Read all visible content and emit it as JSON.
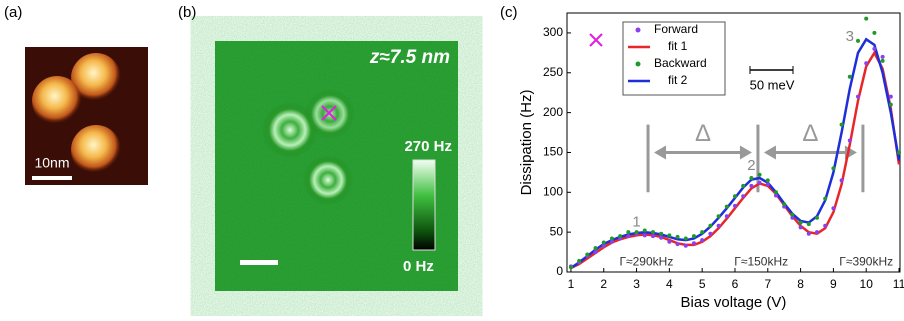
{
  "panels": {
    "a": {
      "label": "(a)",
      "scale_bar": "10nm"
    },
    "b": {
      "label": "(b)",
      "height": "z≈7.5 nm",
      "colorbar_max": "270 Hz",
      "colorbar_min": "0 Hz"
    },
    "c": {
      "label": "(c)"
    }
  },
  "chart_data": {
    "type": "line",
    "xlabel": "Bias voltage (V)",
    "ylabel": "Dissipation (Hz)",
    "xlim": [
      0.88,
      11.03
    ],
    "ylim": [
      0,
      325
    ],
    "xticks": [
      1,
      2,
      3,
      4,
      5,
      6,
      7,
      8,
      9,
      10,
      11
    ],
    "yticks": [
      0,
      50,
      100,
      150,
      200,
      250,
      300
    ],
    "x": [
      1,
      1.25,
      1.5,
      1.75,
      2,
      2.25,
      2.5,
      2.75,
      3,
      3.25,
      3.5,
      3.75,
      4,
      4.25,
      4.5,
      4.75,
      5,
      5.25,
      5.5,
      5.75,
      6,
      6.25,
      6.5,
      6.75,
      7,
      7.25,
      7.5,
      7.75,
      8,
      8.25,
      8.5,
      8.75,
      9,
      9.25,
      9.5,
      9.75,
      10,
      10.25,
      10.5,
      10.75,
      11
    ],
    "series": [
      {
        "name": "Forward",
        "color": "#8a3ff0",
        "marker": "dot",
        "values": [
          7,
          12,
          20,
          25,
          33,
          38,
          42,
          45,
          48,
          46,
          45,
          43,
          38,
          35,
          33,
          36,
          40,
          48,
          58,
          70,
          83,
          95,
          108,
          112,
          110,
          96,
          82,
          68,
          56,
          48,
          50,
          58,
          80,
          115,
          165,
          220,
          262,
          280,
          270,
          220,
          150
        ]
      },
      {
        "name": "fit 1",
        "color": "#e8262a",
        "marker": "line",
        "values": [
          5,
          10,
          17,
          24,
          31,
          37,
          41,
          44,
          46,
          47,
          46,
          44,
          40,
          36,
          34,
          34,
          38,
          45,
          55,
          67,
          80,
          93,
          105,
          111,
          108,
          98,
          84,
          70,
          58,
          50,
          48,
          55,
          75,
          110,
          160,
          215,
          258,
          275,
          255,
          205,
          135
        ]
      },
      {
        "name": "Backward",
        "color": "#1e9a2a",
        "marker": "dot",
        "values": [
          6,
          14,
          22,
          30,
          37,
          42,
          45,
          50,
          50,
          52,
          50,
          48,
          46,
          44,
          42,
          45,
          50,
          58,
          70,
          82,
          95,
          108,
          118,
          122,
          115,
          100,
          85,
          72,
          62,
          60,
          68,
          92,
          130,
          185,
          245,
          290,
          318,
          300,
          265,
          210,
          150
        ]
      },
      {
        "name": "fit 2",
        "color": "#1c2fd8",
        "marker": "line",
        "values": [
          5,
          12,
          20,
          28,
          35,
          40,
          44,
          47,
          49,
          50,
          49,
          47,
          44,
          41,
          40,
          42,
          48,
          57,
          68,
          80,
          93,
          106,
          116,
          118,
          112,
          100,
          86,
          73,
          64,
          62,
          70,
          90,
          125,
          175,
          230,
          275,
          292,
          285,
          250,
          200,
          140
        ]
      }
    ],
    "annotations": [
      {
        "text": "1",
        "x": 3.0,
        "y": 62
      },
      {
        "text": "2",
        "x": 6.5,
        "y": 133
      },
      {
        "text": "3",
        "x": 9.5,
        "y": 295
      },
      {
        "text": "Γ≈290kHz",
        "x": 3.3,
        "y": 12
      },
      {
        "text": "Γ≈150kHz",
        "x": 6.8,
        "y": 12
      },
      {
        "text": "Γ≈390kHz",
        "x": 10.0,
        "y": 12
      }
    ],
    "delta_label": "Δ",
    "delta_brackets": [
      3.35,
      6.7,
      9.9
    ],
    "energy_scale": "50 meV"
  }
}
